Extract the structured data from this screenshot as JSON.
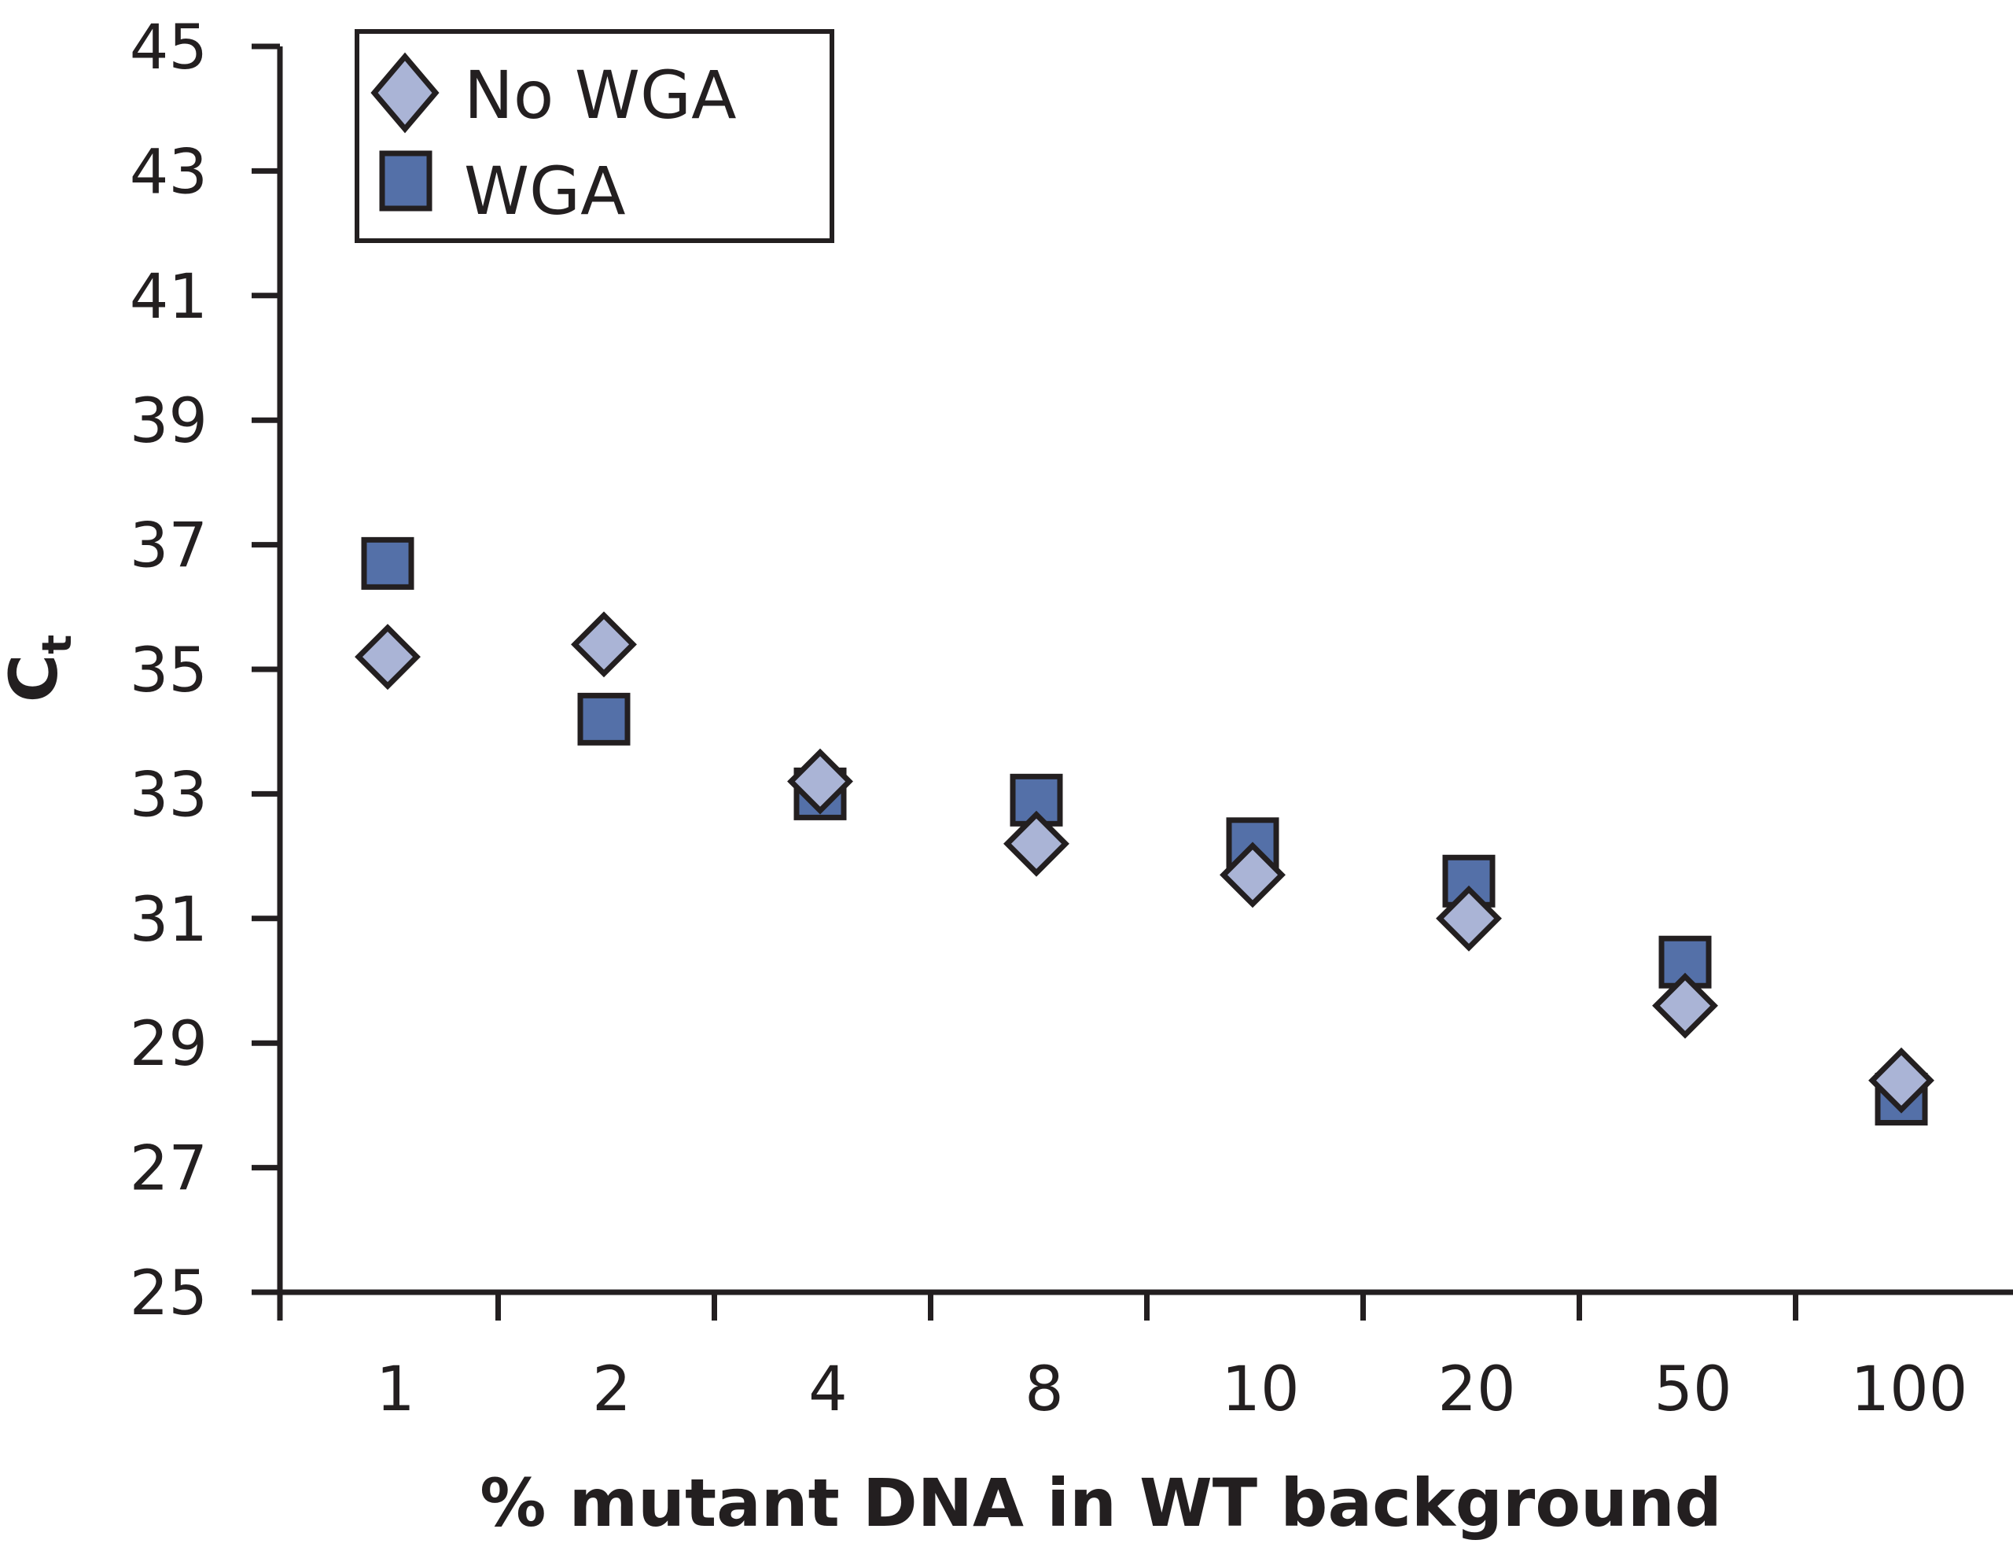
{
  "chart_data": {
    "type": "scatter",
    "title": "",
    "xlabel": "% mutant DNA in WT background",
    "ylabel": "C",
    "ylabel_subscript": "t",
    "categories": [
      "1",
      "2",
      "4",
      "8",
      "10",
      "20",
      "50",
      "100"
    ],
    "ylim": [
      25,
      45
    ],
    "yticks": [
      25,
      27,
      29,
      31,
      33,
      35,
      37,
      39,
      41,
      43,
      45
    ],
    "grid": false,
    "legend_position": "top-left",
    "series": [
      {
        "name": "No WGA",
        "marker": "diamond",
        "color": "#aab4d6",
        "values": [
          35.2,
          35.4,
          33.2,
          32.2,
          31.7,
          31.0,
          29.6,
          28.4
        ]
      },
      {
        "name": "WGA",
        "marker": "square",
        "color": "#5470a8",
        "values": [
          36.7,
          34.2,
          33.0,
          32.9,
          32.2,
          31.6,
          30.3,
          28.1
        ]
      }
    ]
  },
  "colors": {
    "axis": "#231f20",
    "marker_stroke": "#231f20"
  }
}
